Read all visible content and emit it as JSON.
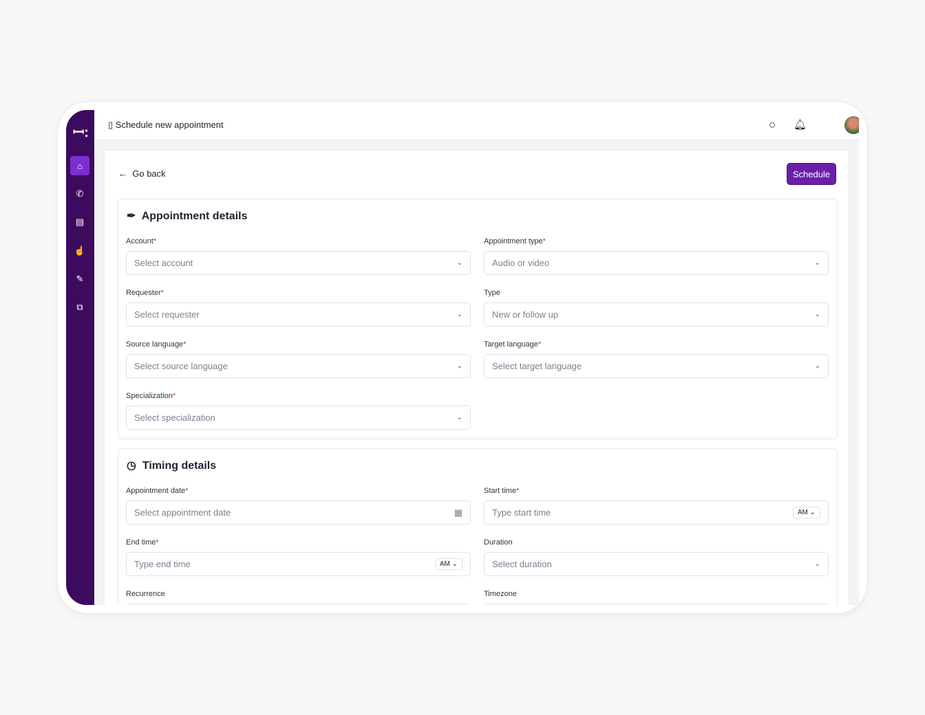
{
  "header": {
    "title": "Schedule new appointment"
  },
  "sidebar": {
    "items": [
      "home",
      "calls",
      "documents",
      "interpreters",
      "assignments",
      "translations"
    ]
  },
  "page": {
    "go_back": "Go back",
    "schedule_label": "Schedule"
  },
  "appointment": {
    "title": "Appointment details",
    "fields": [
      {
        "label": "Account",
        "required": "*",
        "placeholder": "Select account"
      },
      {
        "label": "Appointment type",
        "required": "*",
        "placeholder": "Audio or video"
      },
      {
        "label": "Requester",
        "required": "*",
        "placeholder": "Select requester"
      },
      {
        "label": "Type",
        "required": "",
        "placeholder": "New or follow up"
      },
      {
        "label": "Source language",
        "required": "*",
        "placeholder": "Select source language"
      },
      {
        "label": "Target language",
        "required": "*",
        "placeholder": "Select target language"
      },
      {
        "label": "Specialization",
        "required": "*",
        "placeholder": "Select specialization"
      }
    ]
  },
  "timing": {
    "title": "Timing details",
    "fields": [
      {
        "label": "Appointment date",
        "required": "*",
        "placeholder": "Select appointment date"
      },
      {
        "label": "Start time",
        "required": "*",
        "placeholder": "Type start time",
        "ampm": "AM"
      },
      {
        "label": "End time",
        "required": "*",
        "placeholder": "Type end time",
        "ampm": "AM"
      },
      {
        "label": "Duration",
        "required": "",
        "placeholder": "Select duration"
      },
      {
        "label": "Recurrence",
        "required": ""
      },
      {
        "label": "Timezone",
        "required": ""
      }
    ]
  },
  "colors": {
    "sidebar": "#3d0b5e",
    "accent": "#6b1fa8",
    "required": "#d32f2f"
  }
}
